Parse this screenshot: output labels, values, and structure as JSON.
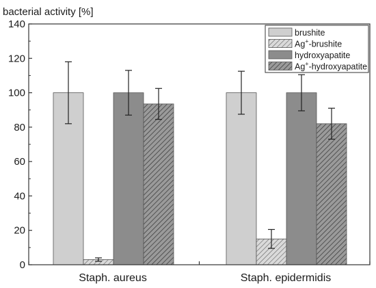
{
  "chart_data": {
    "type": "bar",
    "ylabel": "bacterial activity [%]",
    "ylim": [
      0,
      140
    ],
    "yticks": [
      0,
      20,
      40,
      60,
      80,
      100,
      120,
      140
    ],
    "categories": [
      "Staph. aureus",
      "Staph. epidermidis"
    ],
    "series": [
      {
        "name": "brushite",
        "name_main": "brushite",
        "name_sup": "",
        "name_rest": "",
        "color": "#cfcfcf",
        "hatch": false,
        "values": [
          100,
          100
        ],
        "errors": [
          18,
          12.5
        ]
      },
      {
        "name": "Ag+-brushite",
        "name_main": "Ag",
        "name_sup": "+",
        "name_rest": "-brushite",
        "color": "#d4d4d4",
        "hatch": true,
        "values": [
          3,
          15
        ],
        "errors": [
          1,
          5.5
        ]
      },
      {
        "name": "hydroxyapatite",
        "name_main": "hydroxyapatite",
        "name_sup": "",
        "name_rest": "",
        "color": "#8c8c8c",
        "hatch": false,
        "values": [
          100,
          100
        ],
        "errors": [
          13,
          10.5
        ]
      },
      {
        "name": "Ag+-hydroxyapatite",
        "name_main": "Ag",
        "name_sup": "+",
        "name_rest": "-hydroxyapatite",
        "color": "#8c8c8c",
        "hatch": true,
        "values": [
          93.5,
          82
        ],
        "errors": [
          9,
          9
        ]
      }
    ],
    "legend_position": "top-right",
    "grid": false
  }
}
